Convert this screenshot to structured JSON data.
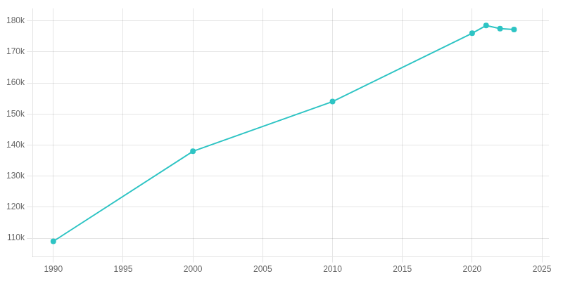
{
  "chart_data": {
    "type": "line",
    "x": [
      1990,
      2000,
      2010,
      2020,
      2021,
      2022,
      2023
    ],
    "values": [
      109000,
      138000,
      154000,
      176000,
      178500,
      177500,
      177200
    ],
    "color": "#2EC4C4",
    "marker": "circle",
    "xlim": [
      1988.5,
      2025.5
    ],
    "xticks": [
      1990,
      1995,
      2000,
      2005,
      2010,
      2015,
      2020,
      2025
    ],
    "ylim": [
      104000,
      184000
    ],
    "yticks": [
      {
        "value": 110000,
        "label": "110k"
      },
      {
        "value": 120000,
        "label": "120k"
      },
      {
        "value": 130000,
        "label": "130k"
      },
      {
        "value": 140000,
        "label": "140k"
      },
      {
        "value": 150000,
        "label": "150k"
      },
      {
        "value": 160000,
        "label": "160k"
      },
      {
        "value": 170000,
        "label": "170k"
      },
      {
        "value": 180000,
        "label": "180k"
      }
    ],
    "grid": true
  }
}
